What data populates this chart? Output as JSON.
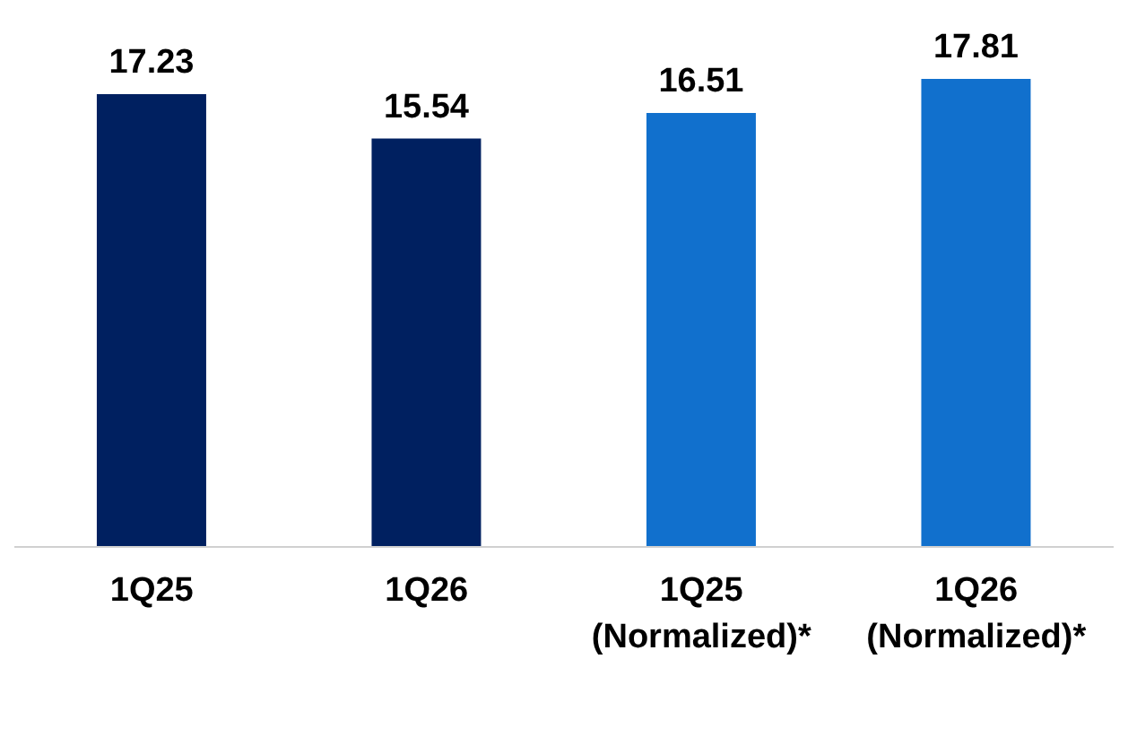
{
  "chart_data": {
    "type": "bar",
    "categories": [
      "1Q25",
      "1Q26",
      "1Q25 (Normalized)*",
      "1Q26 (Normalized)*"
    ],
    "values": [
      17.23,
      15.54,
      16.51,
      17.81
    ],
    "colors": [
      "#002060",
      "#002060",
      "#1170cd",
      "#1170cd"
    ],
    "data_labels": true
  }
}
